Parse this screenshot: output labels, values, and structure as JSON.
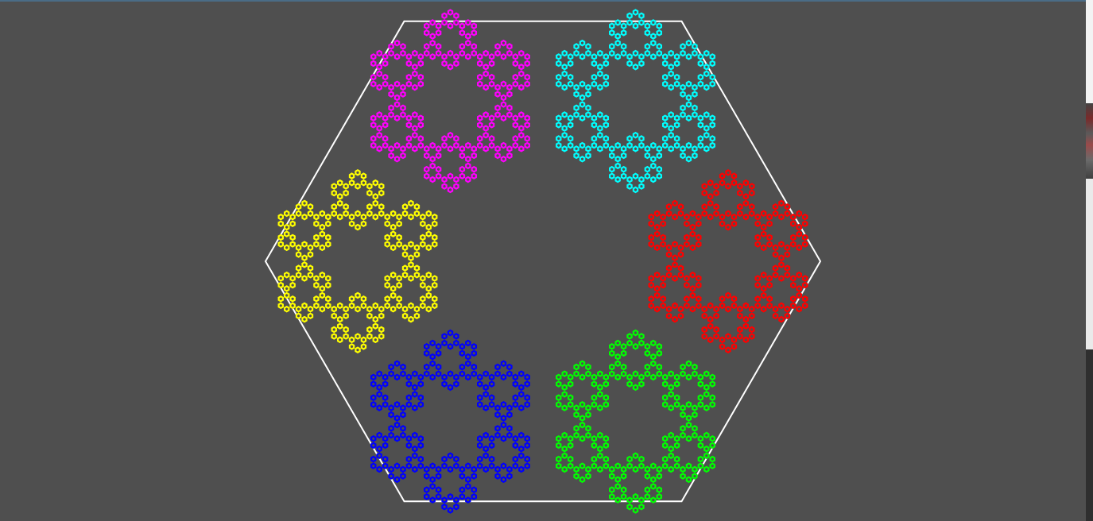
{
  "scene": {
    "background_color": "#4f4f4f",
    "outline_color": "#ffffff",
    "fractal_colors": [
      "#ff00ff",
      "#00ffff",
      "#ff0000",
      "#00ff00",
      "#0000ff",
      "#ffff00"
    ],
    "fractal_depth": 3,
    "flake_count": 6,
    "icon": "hexagon-outline"
  }
}
